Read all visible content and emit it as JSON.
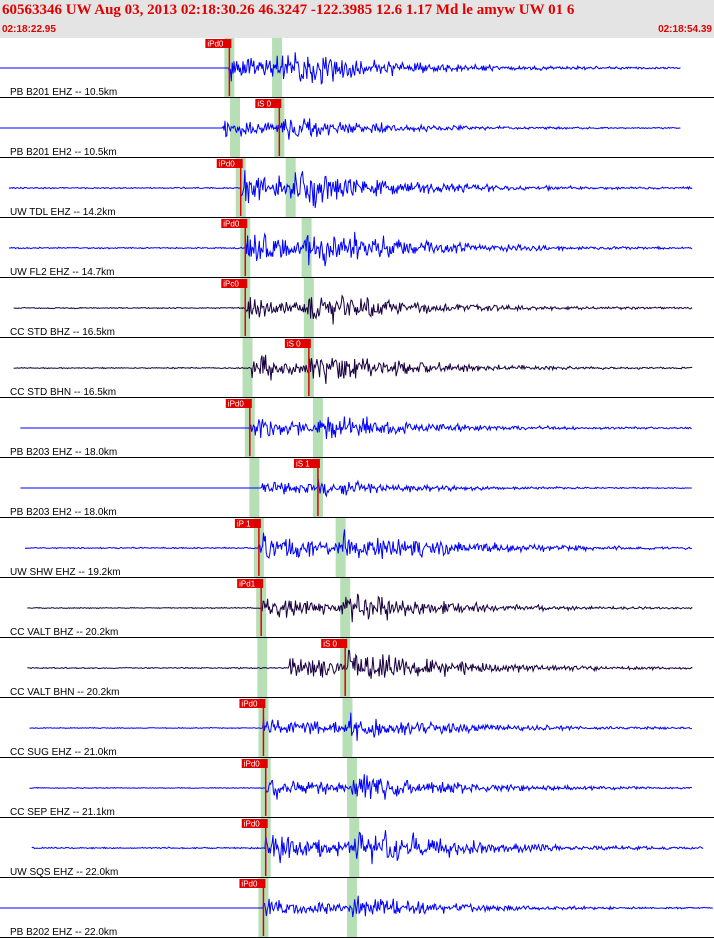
{
  "header": {
    "title": "60563346 UW Aug 03, 2013 02:18:30.26   46.3247 -122.3985 12.6 1.17 Md le amyw UW 01   6",
    "start_time": "02:18:22.95",
    "end_time": "02:18:54.39"
  },
  "chart_data": {
    "type": "line",
    "description_units": "seismogram traces, time in seconds from 02:18:22.95",
    "time_window_s": [
      0,
      31.44
    ],
    "colors": {
      "vertical": "#0000ff",
      "horizontal": "#1a0040",
      "pick": "#e00000",
      "band": "#b6dfb6"
    },
    "traces": [
      {
        "label": "PB B201 EHZ -- 10.5km",
        "pick": "iPd0",
        "pick_t": 10.1,
        "s_t": 12.2,
        "amp": 1.0,
        "color": "vertical",
        "start_t": 0.0,
        "end_t": 30.0,
        "flat": true
      },
      {
        "label": "PB B201 EH2 -- 10.5km",
        "pick": "iS 0",
        "pick_t": 12.3,
        "s_t": 12.3,
        "amp": 0.6,
        "color": "vertical",
        "start_t": 0.0,
        "end_t": 30.0,
        "flat": true
      },
      {
        "label": "UW TDL EHZ -- 14.2km",
        "pick": "iPd0",
        "pick_t": 10.6,
        "s_t": 12.8,
        "amp": 1.0,
        "color": "vertical",
        "start_t": 0.4,
        "end_t": 30.5,
        "flat": false
      },
      {
        "label": "UW FL2 EHZ -- 14.7km",
        "pick": "iPd0",
        "pick_t": 10.8,
        "s_t": 13.5,
        "amp": 1.0,
        "color": "vertical",
        "start_t": 0.4,
        "end_t": 30.5,
        "flat": false
      },
      {
        "label": "CC STD BHZ -- 16.5km",
        "pick": "iPc0",
        "pick_t": 10.8,
        "s_t": 13.6,
        "amp": 0.8,
        "color": "horizontal",
        "start_t": 0.6,
        "end_t": 30.5,
        "flat": false
      },
      {
        "label": "CC STD BHN -- 16.5km",
        "pick": "iS 0",
        "pick_t": 13.6,
        "s_t": 13.6,
        "amp": 0.85,
        "color": "horizontal",
        "start_t": 0.6,
        "end_t": 30.5,
        "flat": false
      },
      {
        "label": "PB B203 EHZ -- 18.0km",
        "pick": "iPd0",
        "pick_t": 11.0,
        "s_t": 14.0,
        "amp": 0.7,
        "color": "vertical",
        "start_t": 0.9,
        "end_t": 30.5,
        "flat": true
      },
      {
        "label": "PB B203 EH2 -- 18.0km",
        "pick": "iS 1",
        "pick_t": 14.0,
        "s_t": 14.0,
        "amp": 0.45,
        "color": "vertical",
        "start_t": 0.9,
        "end_t": 30.5,
        "flat": true
      },
      {
        "label": "UW SHW EHZ -- 19.2km",
        "pick": "iP 1",
        "pick_t": 11.4,
        "s_t": 15.0,
        "amp": 0.95,
        "color": "vertical",
        "start_t": 1.1,
        "end_t": 30.5,
        "flat": false
      },
      {
        "label": "CC VALT BHZ -- 20.2km",
        "pick": "iPd1",
        "pick_t": 11.5,
        "s_t": 15.2,
        "amp": 0.75,
        "color": "horizontal",
        "start_t": 1.2,
        "end_t": 30.5,
        "flat": false
      },
      {
        "label": "CC VALT BHN -- 20.2km",
        "pick": "iS 0",
        "pick_t": 15.2,
        "s_t": 15.2,
        "amp": 0.9,
        "color": "horizontal",
        "start_t": 1.2,
        "end_t": 30.5,
        "flat": false
      },
      {
        "label": "CC SUG EHZ -- 21.0km",
        "pick": "iPd0",
        "pick_t": 11.6,
        "s_t": 15.3,
        "amp": 0.7,
        "color": "vertical",
        "start_t": 1.3,
        "end_t": 30.5,
        "flat": false
      },
      {
        "label": "CC SEP EHZ -- 21.1km",
        "pick": "iPd0",
        "pick_t": 11.7,
        "s_t": 15.5,
        "amp": 0.7,
        "color": "vertical",
        "start_t": 1.3,
        "end_t": 30.5,
        "flat": false
      },
      {
        "label": "UW SQS EHZ -- 22.0km",
        "pick": "iPd0",
        "pick_t": 11.7,
        "s_t": 15.6,
        "amp": 1.0,
        "color": "vertical",
        "start_t": 1.4,
        "end_t": 31.0,
        "flat": false
      },
      {
        "label": "PB B202 EHZ -- 22.0km",
        "pick": "iPd0",
        "pick_t": 11.6,
        "s_t": 15.5,
        "amp": 0.6,
        "color": "vertical",
        "start_t": 0.0,
        "end_t": 31.4,
        "flat": true
      }
    ]
  }
}
